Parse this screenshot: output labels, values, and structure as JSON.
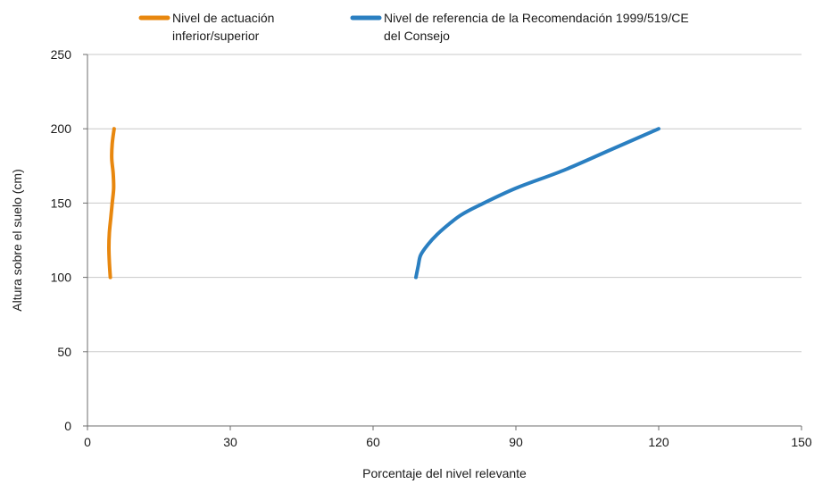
{
  "chart_data": {
    "type": "line",
    "xlabel": "Porcentaje del nivel relevante",
    "ylabel": "Altura sobre el suelo (cm)",
    "xlim": [
      0,
      150
    ],
    "ylim": [
      0,
      250
    ],
    "x_ticks": [
      0,
      30,
      60,
      90,
      120,
      150
    ],
    "y_ticks": [
      0,
      50,
      100,
      150,
      200,
      250
    ],
    "grid": "horizontal",
    "legend_position": "top",
    "series": [
      {
        "name": "Nivel de actuación inferior/superior",
        "name_lines": [
          "Nivel de actuación",
          "inferior/superior"
        ],
        "color": "#e8870e",
        "points": [
          {
            "x": 4.8,
            "y": 100
          },
          {
            "x": 4.6,
            "y": 110
          },
          {
            "x": 4.5,
            "y": 120
          },
          {
            "x": 4.6,
            "y": 130
          },
          {
            "x": 4.9,
            "y": 140
          },
          {
            "x": 5.2,
            "y": 150
          },
          {
            "x": 5.5,
            "y": 160
          },
          {
            "x": 5.4,
            "y": 170
          },
          {
            "x": 5.1,
            "y": 180
          },
          {
            "x": 5.2,
            "y": 190
          },
          {
            "x": 5.6,
            "y": 200
          }
        ]
      },
      {
        "name": "Nivel de referencia de la Recomendación 1999/519/CE del Consejo",
        "name_lines": [
          "Nivel de referencia de la Recomendación 1999/519/CE",
          "del Consejo"
        ],
        "color": "#2a7fc1",
        "points": [
          {
            "x": 69,
            "y": 100
          },
          {
            "x": 69.5,
            "y": 108
          },
          {
            "x": 70,
            "y": 115
          },
          {
            "x": 71.5,
            "y": 122
          },
          {
            "x": 73.5,
            "y": 129
          },
          {
            "x": 76,
            "y": 136
          },
          {
            "x": 78.5,
            "y": 142
          },
          {
            "x": 82,
            "y": 148
          },
          {
            "x": 90,
            "y": 160
          },
          {
            "x": 100,
            "y": 172
          },
          {
            "x": 110,
            "y": 186
          },
          {
            "x": 120,
            "y": 200
          }
        ]
      }
    ]
  }
}
